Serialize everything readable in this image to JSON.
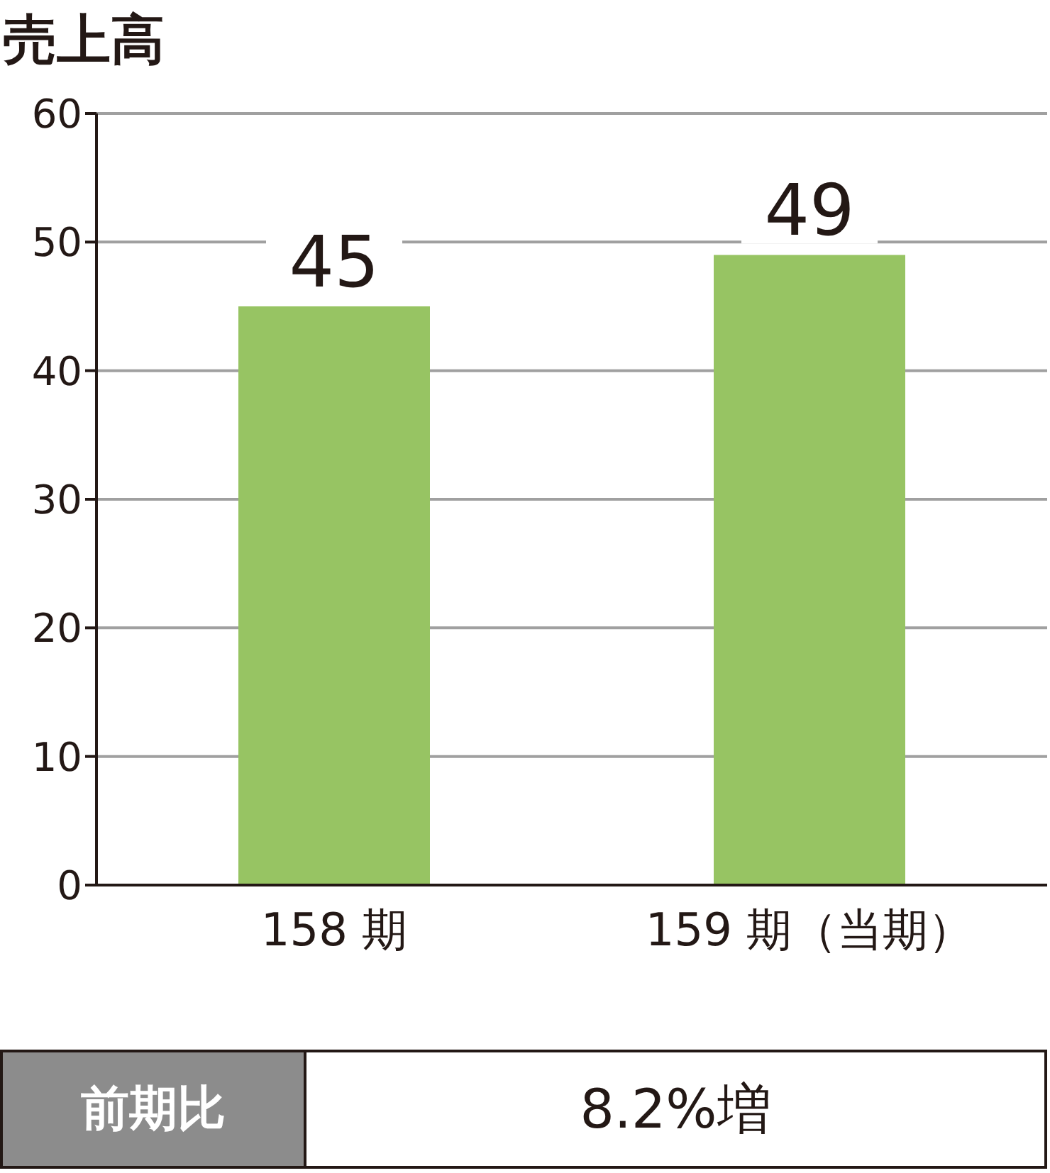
{
  "chart_data": {
    "type": "bar",
    "title": "売上高",
    "categories": [
      "158 期",
      "159 期（当期）"
    ],
    "values": [
      45,
      49
    ],
    "color": "#97c463",
    "ylim": [
      0,
      60
    ],
    "yticks": [
      0,
      10,
      20,
      30,
      40,
      50,
      60
    ],
    "grid": "y",
    "data_labels": true,
    "annotations": [
      "前期比",
      "8.2%増"
    ]
  }
}
